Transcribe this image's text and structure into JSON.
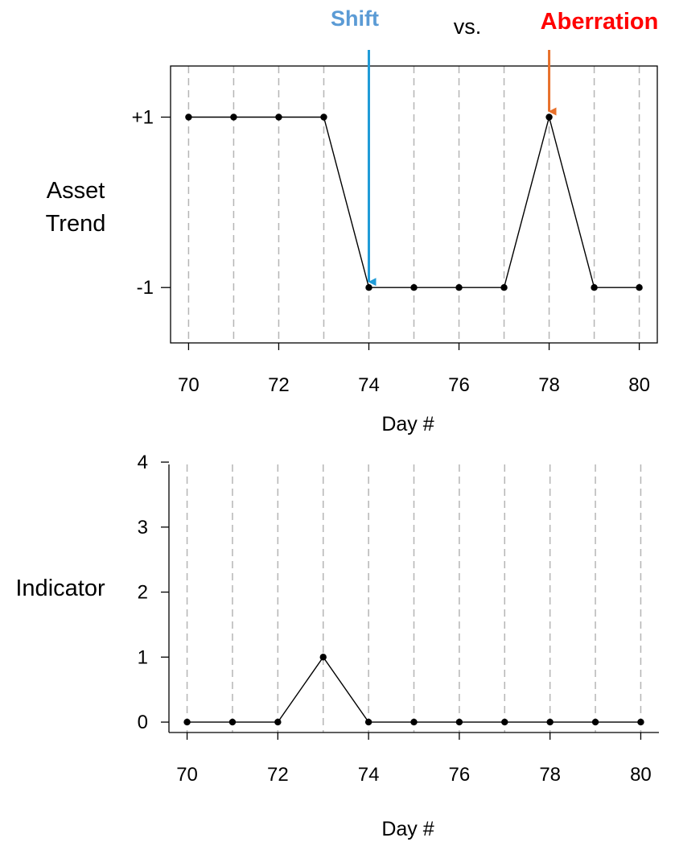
{
  "header": {
    "shift_label": "Shift",
    "vs_label": "vs.",
    "aberration_label": "Aberration",
    "shift_color": "#5b9bd5",
    "aberration_color": "#ff0000",
    "shift_arrow_color": "#1f9bd7",
    "aberration_arrow_color": "#e8702a"
  },
  "chart_data": [
    {
      "type": "line",
      "ylabel_line1": "Asset",
      "ylabel_line2": "Trend",
      "xlabel": "Day #",
      "x": [
        70,
        71,
        72,
        73,
        74,
        75,
        76,
        77,
        78,
        79,
        80
      ],
      "values": [
        1,
        1,
        1,
        1,
        -1,
        -1,
        -1,
        -1,
        1,
        -1,
        -1
      ],
      "xlim": [
        69.6,
        80.4
      ],
      "ylim": [
        -1.65,
        1.6
      ],
      "xticks": [
        70,
        72,
        74,
        76,
        78,
        80
      ],
      "yticks": [
        1,
        -1
      ],
      "ytick_labels": [
        "+1",
        "-1"
      ],
      "vgrid_x": [
        70,
        71,
        72,
        73,
        74,
        75,
        76,
        77,
        78,
        79,
        80
      ],
      "grid": "vertical-dashed",
      "annotations": [
        {
          "target": "shift",
          "x": 74,
          "y": -1
        },
        {
          "target": "aberration",
          "x": 78,
          "y": 1
        }
      ]
    },
    {
      "type": "line",
      "ylabel": "Indicator",
      "xlabel": "Day #",
      "x": [
        70,
        71,
        72,
        73,
        74,
        75,
        76,
        77,
        78,
        79,
        80
      ],
      "values": [
        0,
        0,
        0,
        1,
        0,
        0,
        0,
        0,
        0,
        0,
        0
      ],
      "xlim": [
        69.6,
        80.4
      ],
      "ylim": [
        -0.16,
        4.1
      ],
      "xticks": [
        70,
        72,
        74,
        76,
        78,
        80
      ],
      "yticks": [
        0,
        1,
        2,
        3,
        4
      ],
      "ytick_labels": [
        "0",
        "1",
        "2",
        "3",
        "4"
      ],
      "vgrid_x": [
        70,
        71,
        72,
        73,
        74,
        75,
        76,
        77,
        78,
        79,
        80
      ],
      "grid": "vertical-dashed"
    }
  ]
}
